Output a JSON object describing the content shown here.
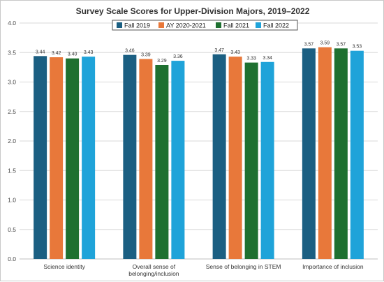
{
  "chart_data": {
    "type": "bar",
    "title": "Survey Scale Scores for Upper-Division Majors, 2019–2022",
    "xlabel": "",
    "ylabel": "",
    "ylim": [
      0,
      4.0
    ],
    "yticks": [
      "0.0",
      "0.5",
      "1.0",
      "1.5",
      "2.0",
      "2.5",
      "3.0",
      "3.5",
      "4.0"
    ],
    "grid": true,
    "legend_position": "top-center",
    "categories": [
      [
        "Science identity"
      ],
      [
        "Overall sense of",
        "belonging/inclusion"
      ],
      [
        "Sense of belonging in STEM"
      ],
      [
        "Importance of inclusion"
      ]
    ],
    "series": [
      {
        "name": "Fall 2019",
        "color": "#1b5f82",
        "values": [
          3.44,
          3.46,
          3.47,
          3.57
        ],
        "labels": [
          "3.44",
          "3.46",
          "3.47",
          "3.57"
        ]
      },
      {
        "name": "AY 2020-2021",
        "color": "#e8783a",
        "values": [
          3.42,
          3.39,
          3.43,
          3.59
        ],
        "labels": [
          "3.42",
          "3.39",
          "3.43",
          "3.59"
        ]
      },
      {
        "name": "Fall 2021",
        "color": "#1e7030",
        "values": [
          3.4,
          3.29,
          3.33,
          3.57
        ],
        "labels": [
          "3.40",
          "3.29",
          "3.33",
          "3.57"
        ]
      },
      {
        "name": "Fall 2022",
        "color": "#1fa3d9",
        "values": [
          3.43,
          3.36,
          3.34,
          3.53
        ],
        "labels": [
          "3.43",
          "3.36",
          "3.34",
          "3.53"
        ]
      }
    ]
  }
}
